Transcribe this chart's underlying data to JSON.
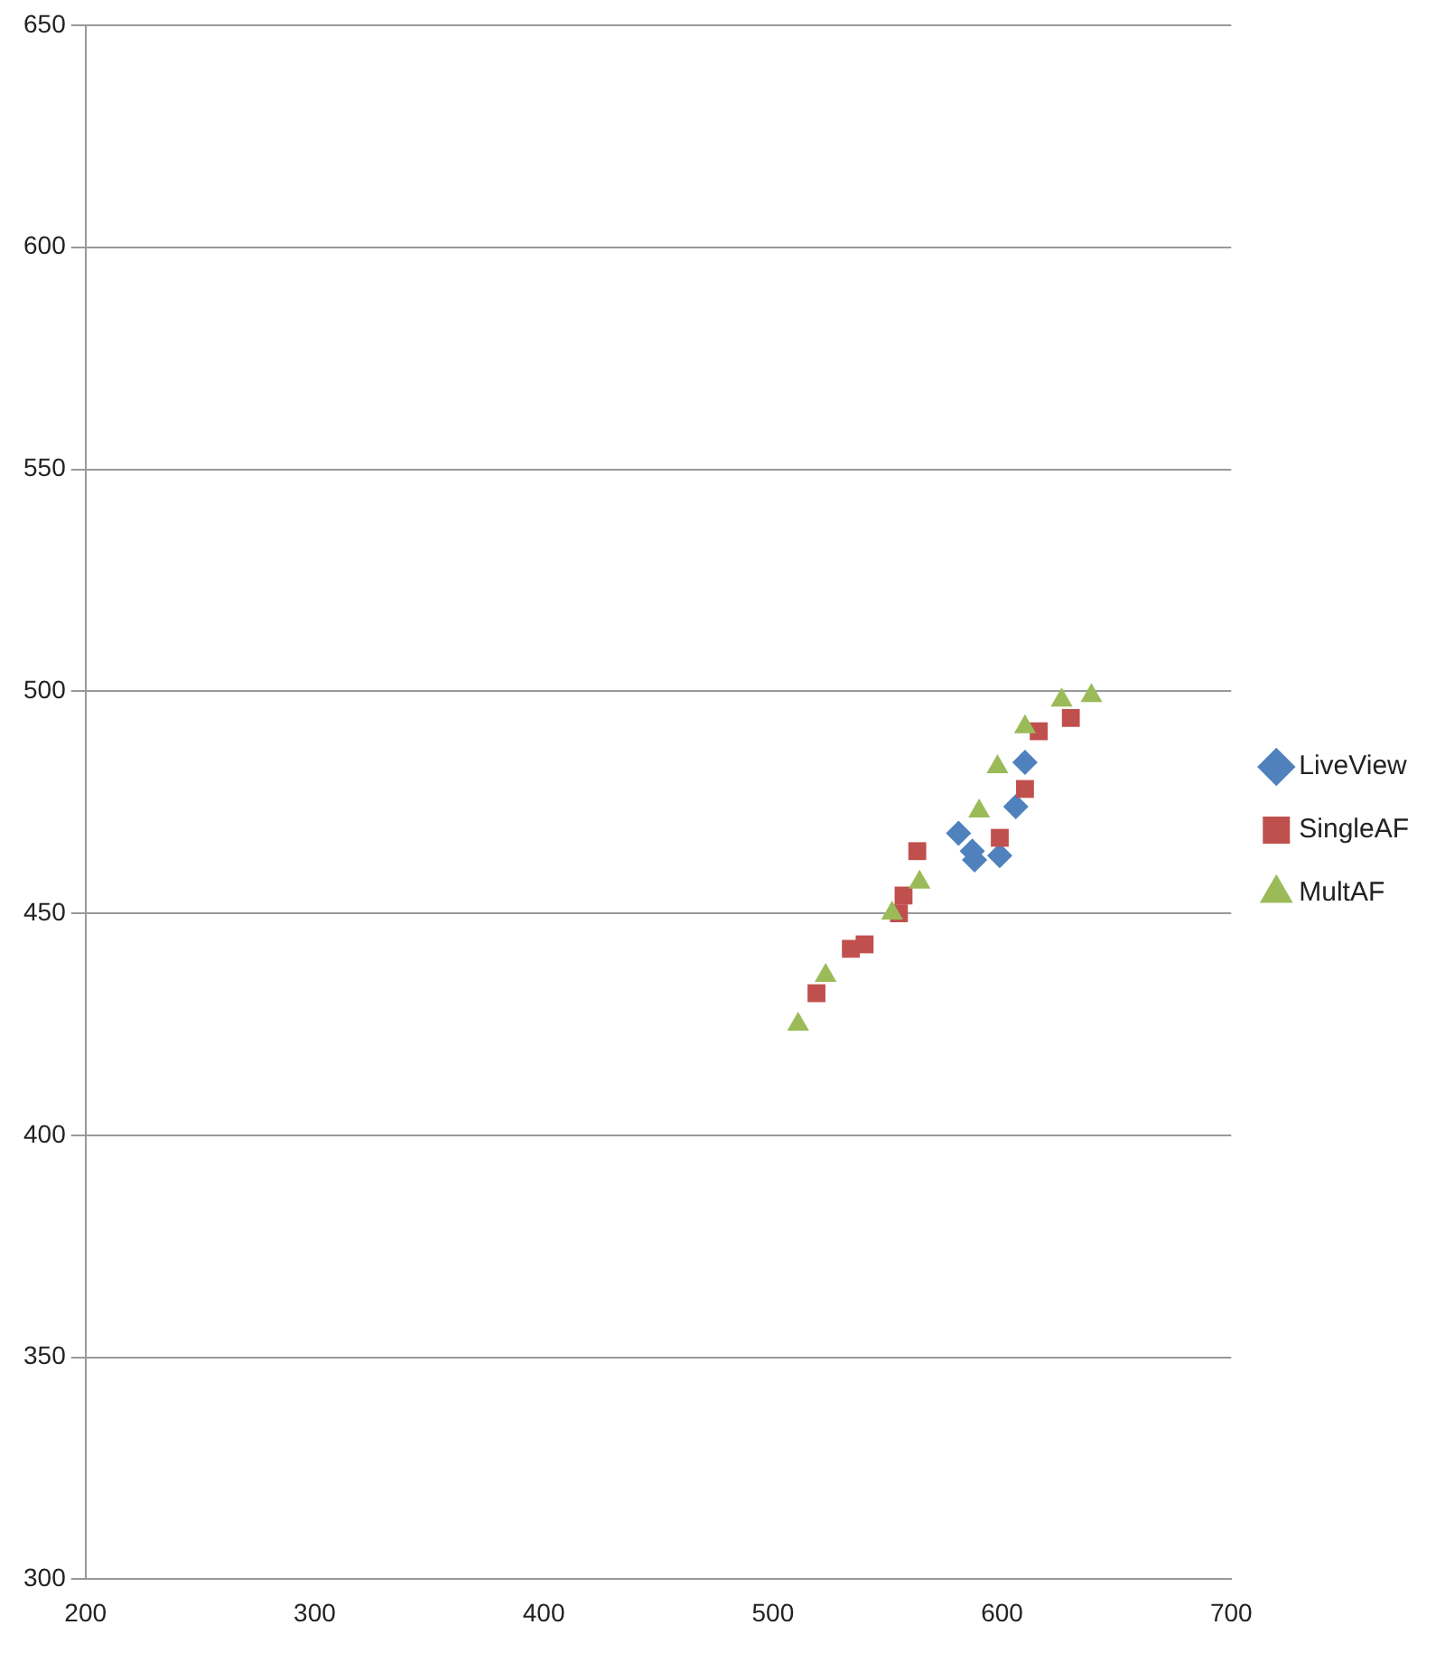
{
  "chart_data": {
    "type": "scatter",
    "xlim": [
      200,
      700
    ],
    "xticks": [
      200,
      300,
      400,
      500,
      600,
      700
    ],
    "ylim": [
      300,
      650
    ],
    "yticks": [
      300,
      350,
      400,
      450,
      500,
      550,
      600,
      650
    ],
    "grid": "y",
    "legend": "right",
    "series": [
      {
        "name": "LiveView",
        "color": "#4f81bd",
        "marker": "diamond",
        "x": [
          610,
          606,
          581,
          587,
          588,
          599
        ],
        "values": [
          484,
          474,
          468,
          464,
          462,
          463
        ]
      },
      {
        "name": "SingleAF",
        "color": "#c0504d",
        "marker": "square",
        "x": [
          630,
          616,
          610,
          599,
          563,
          557,
          555,
          540,
          534,
          519
        ],
        "values": [
          494,
          491,
          478,
          467,
          464,
          454,
          450,
          443,
          442,
          432
        ]
      },
      {
        "name": "MultAF",
        "color": "#9bbb59",
        "marker": "triangle",
        "x": [
          639,
          626,
          610,
          598,
          590,
          564,
          552,
          523,
          511
        ],
        "values": [
          499,
          498,
          492,
          483,
          473,
          457,
          450,
          436,
          425
        ]
      }
    ]
  }
}
